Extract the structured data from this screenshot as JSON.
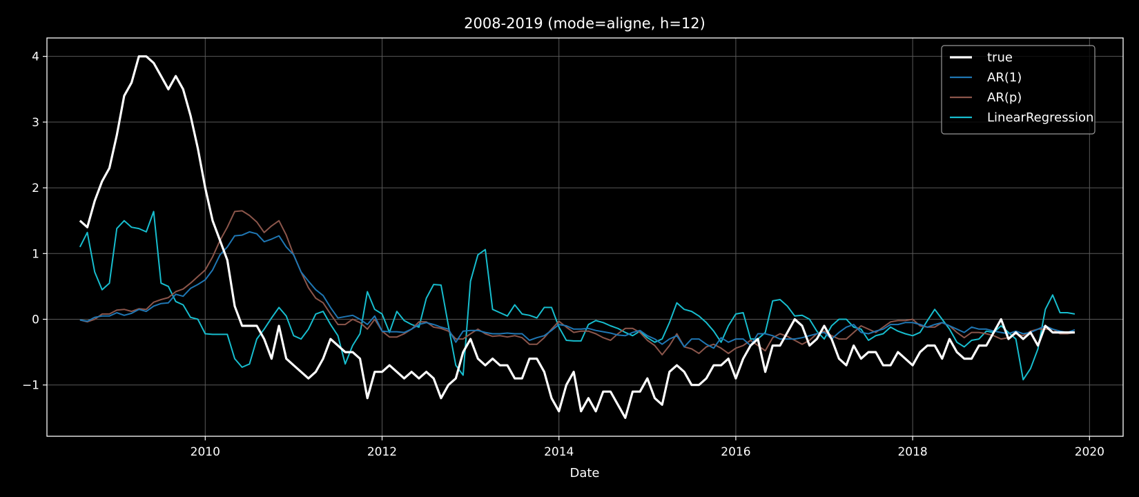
{
  "chart_data": {
    "type": "line",
    "title": "2008-2019 (mode=aligne, h=12)",
    "xlabel": "Date",
    "ylabel": "",
    "x_start": "2008-08",
    "x_step": "month",
    "x_count": 136,
    "xlim": [
      2008.21,
      2020.38
    ],
    "ylim": [
      -1.78,
      4.28
    ],
    "x_ticks": [
      2010,
      2012,
      2014,
      2016,
      2018,
      2020
    ],
    "x_tick_labels": [
      "2010",
      "2012",
      "2014",
      "2016",
      "2018",
      "2020"
    ],
    "y_ticks": [
      -1,
      0,
      1,
      2,
      3,
      4
    ],
    "y_tick_labels": [
      "−1",
      "0",
      "1",
      "2",
      "3",
      "4"
    ],
    "grid": true,
    "legend_position": "top-right",
    "series": [
      {
        "name": "true",
        "color": "#ffffff",
        "values": [
          1.5,
          1.4,
          1.8,
          2.1,
          2.3,
          2.8,
          3.4,
          3.6,
          4.0,
          4.0,
          3.9,
          3.7,
          3.5,
          3.7,
          3.5,
          3.1,
          2.6,
          2.0,
          1.5,
          1.2,
          0.9,
          0.2,
          -0.1,
          -0.1,
          -0.1,
          -0.3,
          -0.6,
          -0.1,
          -0.6,
          -0.7,
          -0.8,
          -0.9,
          -0.8,
          -0.6,
          -0.3,
          -0.4,
          -0.5,
          -0.5,
          -0.6,
          -1.2,
          -0.8,
          -0.8,
          -0.7,
          -0.8,
          -0.9,
          -0.8,
          -0.9,
          -0.8,
          -0.9,
          -1.2,
          -1.0,
          -0.9,
          -0.5,
          -0.3,
          -0.6,
          -0.7,
          -0.6,
          -0.7,
          -0.7,
          -0.9,
          -0.9,
          -0.6,
          -0.6,
          -0.8,
          -1.2,
          -1.4,
          -1.0,
          -0.8,
          -1.4,
          -1.2,
          -1.4,
          -1.1,
          -1.1,
          -1.3,
          -1.5,
          -1.1,
          -1.1,
          -0.9,
          -1.2,
          -1.3,
          -0.8,
          -0.7,
          -0.8,
          -1.0,
          -1.0,
          -0.9,
          -0.7,
          -0.7,
          -0.6,
          -0.9,
          -0.6,
          -0.4,
          -0.3,
          -0.8,
          -0.4,
          -0.4,
          -0.2,
          0.0,
          -0.1,
          -0.4,
          -0.3,
          -0.1,
          -0.3,
          -0.6,
          -0.7,
          -0.4,
          -0.6,
          -0.5,
          -0.5,
          -0.7,
          -0.7,
          -0.5,
          -0.6,
          -0.7,
          -0.5,
          -0.4,
          -0.4,
          -0.6,
          -0.3,
          -0.5,
          -0.6,
          -0.6,
          -0.4,
          -0.4,
          -0.2,
          0.0,
          -0.3,
          -0.2,
          -0.3,
          -0.2,
          -0.4,
          -0.1,
          -0.2,
          -0.2,
          -0.2,
          -0.2
        ]
      },
      {
        "name": "AR(1)",
        "color": "#1f77b4",
        "values": [
          -0.01,
          -0.03,
          0.03,
          0.05,
          0.05,
          0.1,
          0.06,
          0.09,
          0.15,
          0.12,
          0.2,
          0.24,
          0.25,
          0.38,
          0.35,
          0.47,
          0.53,
          0.6,
          0.75,
          0.98,
          1.1,
          1.27,
          1.28,
          1.33,
          1.3,
          1.18,
          1.22,
          1.27,
          1.1,
          0.98,
          0.72,
          0.58,
          0.45,
          0.36,
          0.18,
          0.02,
          0.04,
          0.06,
          0.0,
          -0.08,
          0.05,
          -0.18,
          -0.19,
          -0.19,
          -0.2,
          -0.15,
          -0.08,
          -0.05,
          -0.08,
          -0.12,
          -0.15,
          -0.35,
          -0.18,
          -0.17,
          -0.17,
          -0.2,
          -0.22,
          -0.22,
          -0.21,
          -0.22,
          -0.22,
          -0.32,
          -0.28,
          -0.25,
          -0.17,
          -0.08,
          -0.1,
          -0.15,
          -0.15,
          -0.14,
          -0.17,
          -0.19,
          -0.21,
          -0.24,
          -0.25,
          -0.2,
          -0.17,
          -0.25,
          -0.3,
          -0.38,
          -0.3,
          -0.25,
          -0.42,
          -0.3,
          -0.3,
          -0.38,
          -0.44,
          -0.28,
          -0.35,
          -0.3,
          -0.3,
          -0.4,
          -0.22,
          -0.22,
          -0.25,
          -0.3,
          -0.3,
          -0.3,
          -0.28,
          -0.25,
          -0.22,
          -0.2,
          -0.3,
          -0.2,
          -0.12,
          -0.08,
          -0.2,
          -0.22,
          -0.18,
          -0.15,
          -0.08,
          -0.08,
          -0.05,
          -0.05,
          -0.08,
          -0.12,
          -0.08,
          -0.05,
          -0.1,
          -0.15,
          -0.2,
          -0.12,
          -0.15,
          -0.15,
          -0.18,
          -0.2,
          -0.22,
          -0.18,
          -0.22,
          -0.2,
          -0.15,
          -0.1,
          -0.15,
          -0.18,
          -0.2,
          -0.16
        ]
      },
      {
        "name": "AR(p)",
        "color": "#8c564b",
        "values": [
          -0.01,
          -0.04,
          0.0,
          0.08,
          0.08,
          0.14,
          0.15,
          0.12,
          0.16,
          0.15,
          0.26,
          0.3,
          0.33,
          0.42,
          0.46,
          0.55,
          0.65,
          0.75,
          0.95,
          1.2,
          1.4,
          1.64,
          1.65,
          1.58,
          1.48,
          1.32,
          1.42,
          1.5,
          1.28,
          0.98,
          0.72,
          0.48,
          0.32,
          0.25,
          0.08,
          -0.08,
          -0.08,
          0.0,
          -0.05,
          -0.15,
          0.0,
          -0.18,
          -0.27,
          -0.27,
          -0.22,
          -0.15,
          -0.04,
          -0.04,
          -0.12,
          -0.14,
          -0.18,
          -0.3,
          -0.3,
          -0.22,
          -0.15,
          -0.22,
          -0.26,
          -0.25,
          -0.27,
          -0.25,
          -0.28,
          -0.38,
          -0.38,
          -0.28,
          -0.15,
          -0.03,
          -0.12,
          -0.2,
          -0.18,
          -0.18,
          -0.22,
          -0.28,
          -0.32,
          -0.22,
          -0.14,
          -0.14,
          -0.2,
          -0.32,
          -0.4,
          -0.54,
          -0.4,
          -0.22,
          -0.42,
          -0.45,
          -0.52,
          -0.42,
          -0.38,
          -0.44,
          -0.52,
          -0.44,
          -0.4,
          -0.32,
          -0.4,
          -0.48,
          -0.28,
          -0.22,
          -0.26,
          -0.32,
          -0.38,
          -0.32,
          -0.22,
          -0.18,
          -0.25,
          -0.3,
          -0.3,
          -0.2,
          -0.1,
          -0.15,
          -0.2,
          -0.12,
          -0.04,
          -0.02,
          -0.02,
          0.0,
          -0.1,
          -0.12,
          -0.12,
          -0.05,
          -0.1,
          -0.2,
          -0.28,
          -0.2,
          -0.2,
          -0.22,
          -0.25,
          -0.3,
          -0.28,
          -0.22,
          -0.25,
          -0.18,
          -0.15,
          -0.15,
          -0.15,
          -0.22,
          -0.22,
          -0.2
        ]
      },
      {
        "name": "LinearRegression",
        "color": "#17becf",
        "values": [
          1.1,
          1.32,
          0.72,
          0.45,
          0.55,
          1.38,
          1.5,
          1.4,
          1.38,
          1.33,
          1.64,
          0.55,
          0.5,
          0.27,
          0.22,
          0.03,
          0.0,
          -0.22,
          -0.23,
          -0.23,
          -0.23,
          -0.6,
          -0.73,
          -0.68,
          -0.3,
          -0.15,
          0.02,
          0.18,
          0.05,
          -0.25,
          -0.3,
          -0.15,
          0.08,
          0.12,
          -0.08,
          -0.25,
          -0.68,
          -0.4,
          -0.22,
          0.42,
          0.15,
          0.08,
          -0.2,
          0.12,
          -0.02,
          -0.08,
          -0.12,
          0.32,
          0.53,
          0.52,
          -0.1,
          -0.7,
          -0.85,
          0.58,
          0.98,
          1.06,
          0.15,
          0.1,
          0.05,
          0.22,
          0.08,
          0.06,
          0.02,
          0.18,
          0.18,
          -0.12,
          -0.32,
          -0.33,
          -0.33,
          -0.08,
          -0.02,
          -0.05,
          -0.1,
          -0.14,
          -0.2,
          -0.25,
          -0.18,
          -0.28,
          -0.35,
          -0.3,
          -0.05,
          0.25,
          0.15,
          0.12,
          0.05,
          -0.05,
          -0.18,
          -0.35,
          -0.1,
          0.08,
          0.1,
          -0.3,
          -0.3,
          -0.2,
          0.28,
          0.3,
          0.2,
          0.05,
          0.06,
          0.0,
          -0.18,
          -0.3,
          -0.1,
          0.0,
          0.0,
          -0.12,
          -0.15,
          -0.32,
          -0.25,
          -0.22,
          -0.12,
          -0.18,
          -0.22,
          -0.25,
          -0.2,
          -0.02,
          0.15,
          0.0,
          -0.15,
          -0.35,
          -0.42,
          -0.32,
          -0.3,
          -0.18,
          -0.2,
          -0.1,
          -0.2,
          -0.3,
          -0.92,
          -0.75,
          -0.45,
          0.15,
          0.37,
          0.1,
          0.1,
          0.08
        ]
      }
    ]
  }
}
